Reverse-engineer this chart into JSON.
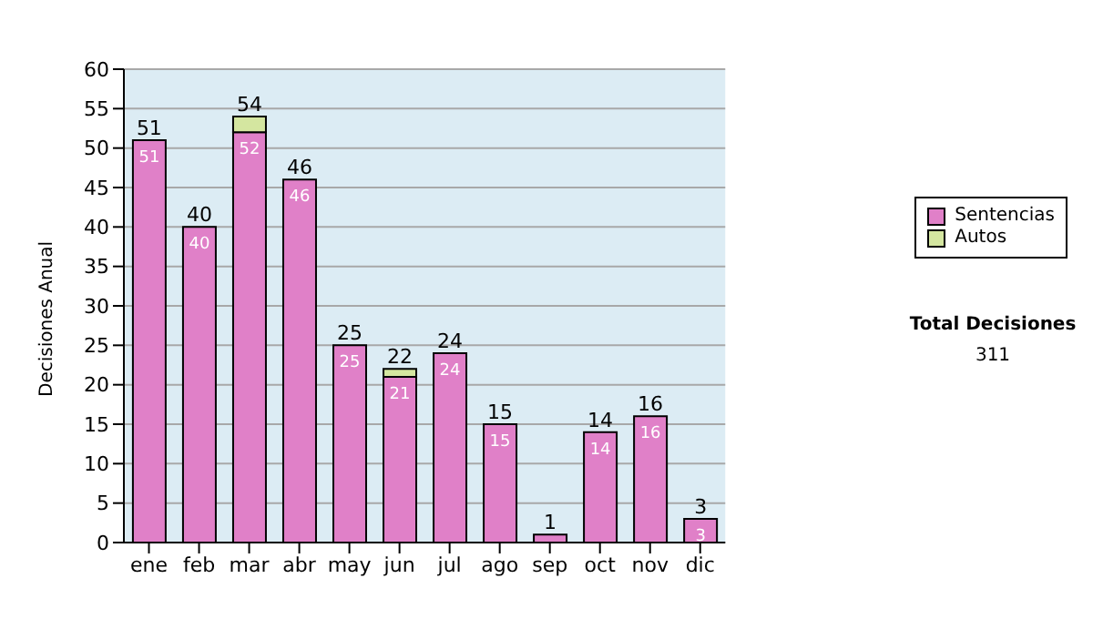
{
  "chart_data": {
    "type": "bar",
    "stacked": true,
    "ylabel": "Decisiones Anual",
    "categories": [
      "ene",
      "feb",
      "mar",
      "abr",
      "may",
      "jun",
      "jul",
      "ago",
      "sep",
      "oct",
      "nov",
      "dic"
    ],
    "series": [
      {
        "name": "Sentencias",
        "color": "#e080c8",
        "values": [
          51,
          40,
          52,
          46,
          25,
          21,
          24,
          15,
          1,
          14,
          16,
          3
        ],
        "value_labels": [
          "51",
          "40",
          "52",
          "46",
          "25",
          "21",
          "24",
          "15",
          null,
          "14",
          "16",
          "3"
        ]
      },
      {
        "name": "Autos",
        "color": "#d4e6a0",
        "values": [
          0,
          0,
          2,
          0,
          0,
          1,
          0,
          0,
          0,
          0,
          0,
          0
        ]
      }
    ],
    "totals": [
      "51",
      "40",
      "54",
      "46",
      "25",
      "22",
      "24",
      "15",
      "1",
      "14",
      "16",
      "3"
    ],
    "ylim": [
      0,
      60
    ],
    "yticks": [
      0,
      5,
      10,
      15,
      20,
      25,
      30,
      35,
      40,
      45,
      50,
      55,
      60
    ],
    "grid": "y",
    "legend": "right",
    "annotations": [
      "Total Decisiones",
      "311"
    ]
  }
}
